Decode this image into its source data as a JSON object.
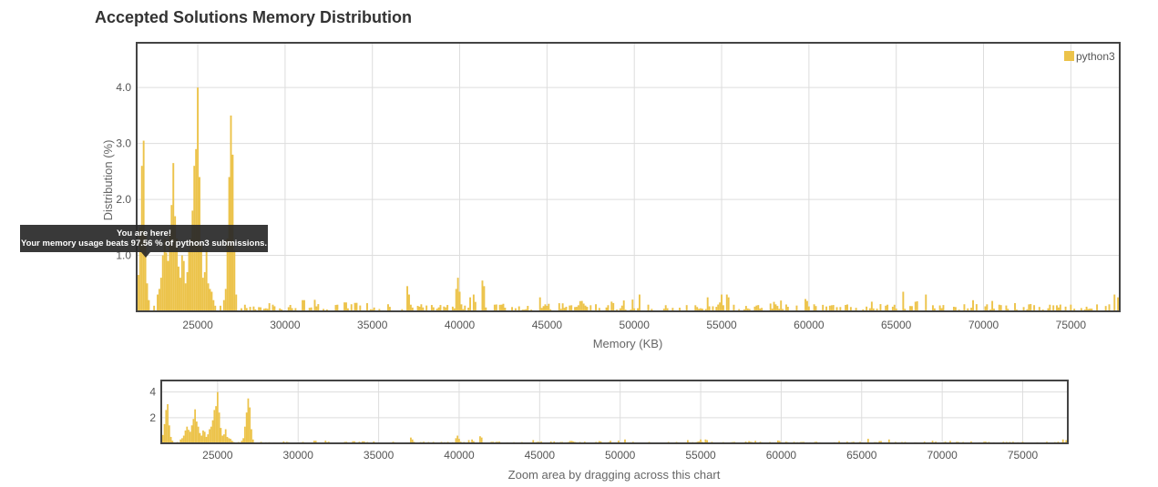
{
  "page": {
    "title": "Accepted Solutions Memory Distribution",
    "zoom_hint": "Zoom area by dragging across this chart"
  },
  "tooltip": {
    "line1": "You are here!",
    "line2": "Your memory usage beats 97.56 % of python3 submissions."
  },
  "colors": {
    "bar": "#ecc34a",
    "frame": "#444444",
    "grid": "#dddddd"
  },
  "chart_data": [
    {
      "type": "bar",
      "xlabel": "Memory (KB)",
      "ylabel": "Distribution (%)",
      "xlim": [
        21500,
        77800
      ],
      "ylim": [
        0,
        4.8
      ],
      "xticks": [
        25000,
        30000,
        35000,
        40000,
        45000,
        50000,
        55000,
        60000,
        65000,
        70000,
        75000
      ],
      "yticks": [
        1.0,
        2.0,
        3.0,
        4.0
      ],
      "ytick_labels": [
        "1.0",
        "2.0",
        "3.0",
        "4.0"
      ],
      "grid": true,
      "legend": "top-right",
      "series": [
        {
          "name": "python3"
        }
      ],
      "bin_width": 100,
      "peaks": [
        {
          "x": 21600,
          "y": 0.65
        },
        {
          "x": 21700,
          "y": 1.5
        },
        {
          "x": 21800,
          "y": 2.6
        },
        {
          "x": 21900,
          "y": 3.05
        },
        {
          "x": 22000,
          "y": 1.4
        },
        {
          "x": 22100,
          "y": 0.5
        },
        {
          "x": 22200,
          "y": 0.2
        },
        {
          "x": 22500,
          "y": 0.1
        },
        {
          "x": 22700,
          "y": 0.3
        },
        {
          "x": 22800,
          "y": 0.4
        },
        {
          "x": 22900,
          "y": 0.6
        },
        {
          "x": 23000,
          "y": 1.0
        },
        {
          "x": 23100,
          "y": 1.3
        },
        {
          "x": 23200,
          "y": 1.05
        },
        {
          "x": 23300,
          "y": 0.9
        },
        {
          "x": 23400,
          "y": 1.4
        },
        {
          "x": 23500,
          "y": 1.9
        },
        {
          "x": 23600,
          "y": 2.65
        },
        {
          "x": 23700,
          "y": 1.7
        },
        {
          "x": 23800,
          "y": 1.3
        },
        {
          "x": 23900,
          "y": 0.8
        },
        {
          "x": 24000,
          "y": 0.6
        },
        {
          "x": 24100,
          "y": 1.0
        },
        {
          "x": 24200,
          "y": 0.9
        },
        {
          "x": 24300,
          "y": 0.5
        },
        {
          "x": 24400,
          "y": 0.7
        },
        {
          "x": 24500,
          "y": 1.1
        },
        {
          "x": 24600,
          "y": 1.3
        },
        {
          "x": 24700,
          "y": 1.8
        },
        {
          "x": 24800,
          "y": 2.6
        },
        {
          "x": 24900,
          "y": 2.9
        },
        {
          "x": 25000,
          "y": 4.0
        },
        {
          "x": 25100,
          "y": 2.4
        },
        {
          "x": 25200,
          "y": 1.2
        },
        {
          "x": 25300,
          "y": 0.6
        },
        {
          "x": 25400,
          "y": 0.7
        },
        {
          "x": 25500,
          "y": 1.1
        },
        {
          "x": 25600,
          "y": 0.5
        },
        {
          "x": 25700,
          "y": 0.4
        },
        {
          "x": 25800,
          "y": 0.35
        },
        {
          "x": 25900,
          "y": 0.2
        },
        {
          "x": 26000,
          "y": 0.1
        },
        {
          "x": 26300,
          "y": 0.1
        },
        {
          "x": 26500,
          "y": 0.2
        },
        {
          "x": 26600,
          "y": 0.4
        },
        {
          "x": 26700,
          "y": 1.3
        },
        {
          "x": 26800,
          "y": 2.4
        },
        {
          "x": 26900,
          "y": 3.5
        },
        {
          "x": 27000,
          "y": 2.8
        },
        {
          "x": 27100,
          "y": 1.1
        },
        {
          "x": 27200,
          "y": 0.3
        },
        {
          "x": 31000,
          "y": 0.2
        },
        {
          "x": 31100,
          "y": 0.2
        },
        {
          "x": 37000,
          "y": 0.45
        },
        {
          "x": 37100,
          "y": 0.3
        },
        {
          "x": 39800,
          "y": 0.4
        },
        {
          "x": 39900,
          "y": 0.6
        },
        {
          "x": 40000,
          "y": 0.35
        },
        {
          "x": 40600,
          "y": 0.25
        },
        {
          "x": 40800,
          "y": 0.3
        },
        {
          "x": 41300,
          "y": 0.55
        },
        {
          "x": 41400,
          "y": 0.45
        },
        {
          "x": 44600,
          "y": 0.25
        },
        {
          "x": 50300,
          "y": 0.3
        },
        {
          "x": 54200,
          "y": 0.25
        },
        {
          "x": 55000,
          "y": 0.3
        },
        {
          "x": 55300,
          "y": 0.3
        },
        {
          "x": 55400,
          "y": 0.25
        },
        {
          "x": 59800,
          "y": 0.22
        },
        {
          "x": 65400,
          "y": 0.35
        },
        {
          "x": 66700,
          "y": 0.3
        },
        {
          "x": 77500,
          "y": 0.3
        },
        {
          "x": 77700,
          "y": 0.25
        }
      ]
    },
    {
      "type": "bar",
      "xlim": [
        21500,
        77800
      ],
      "ylim": [
        0,
        4.9
      ],
      "xticks": [
        25000,
        30000,
        35000,
        40000,
        45000,
        50000,
        55000,
        60000,
        65000,
        70000,
        75000
      ],
      "yticks": [
        2,
        4
      ],
      "ytick_labels": [
        "2",
        "4"
      ],
      "grid": true
    }
  ]
}
